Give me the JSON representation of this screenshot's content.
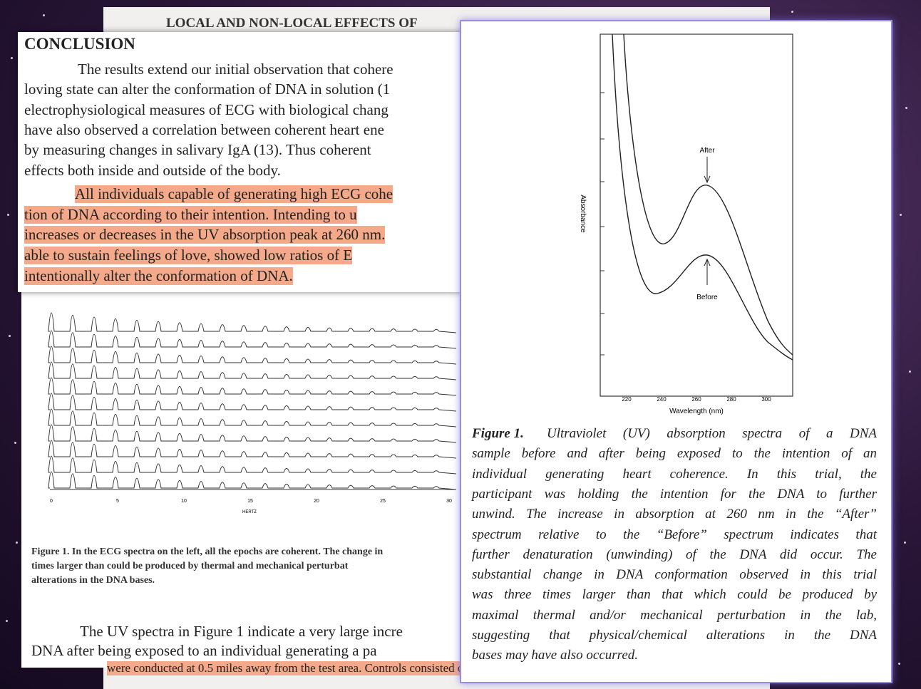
{
  "header": {
    "running_title": "LOCAL AND NON-LOCAL EFFECTS OF"
  },
  "conclusion": {
    "heading": "CONCLUSION",
    "paragraph_1": [
      "The results extend our initial observation that cohere",
      "loving state can alter the conformation of DNA in solution (1",
      "electrophysiological measures of ECG with biological chang",
      "have also observed a correlation between coherent heart ene",
      "by measuring changes in salivary IgA (13). Thus coherent",
      "effects both inside and outside of the body."
    ],
    "paragraph_2": [
      "All individuals capable of generating high ECG cohe",
      "tion of DNA according to their intention. Intending to u",
      "increases or decreases in the UV absorption peak at 260 nm.",
      "able to sustain feelings of love, showed low ratios of E",
      "intentionally alter the conformation of DNA."
    ]
  },
  "ecg_figure": {
    "x_ticks": [
      "0",
      "5",
      "10",
      "15",
      "20",
      "25",
      "30"
    ],
    "x_label": "HERTZ",
    "caption": [
      "Figure 1. In the ECG spectra on the left, all the epochs are coherent. The change in",
      "times larger than could be produced by thermal and mechanical perturbat",
      "alterations in the DNA bases."
    ]
  },
  "body_text": [
    "The UV spectra in Figure 1 indicate a very large incre",
    "DNA after being exposed to an individual generating a pa",
    "were conducted at 0.5 miles away from the test area. Controls consisted of periods where no energy"
  ],
  "uv_figure": {
    "y_label": "Absorbance",
    "x_label": "Wavelength (nm)",
    "x_ticks": [
      "220",
      "240",
      "260",
      "280",
      "300"
    ],
    "annotations": [
      "After",
      "Before"
    ],
    "caption_label": "Figure 1.",
    "caption": [
      "Ultraviolet (UV) absorption spectra of a DNA",
      "sample before and after being exposed to the intention of an",
      "individual generating heart coherence. In this trial, the",
      "participant was holding the intention for the DNA to further",
      "unwind. The increase in absorption at 260 nm in the “After”",
      "spectrum relative to the “Before” spectrum indicates that",
      "further denaturation (unwinding) of the DNA did occur. The",
      "substantial change in DNA conformation observed in this trial",
      "was three times larger than that which could be produced by",
      "maximal thermal and/or mechanical perturbation in the lab,",
      "suggesting that physical/chemical alterations in the DNA",
      "bases may have also occurred."
    ]
  }
}
